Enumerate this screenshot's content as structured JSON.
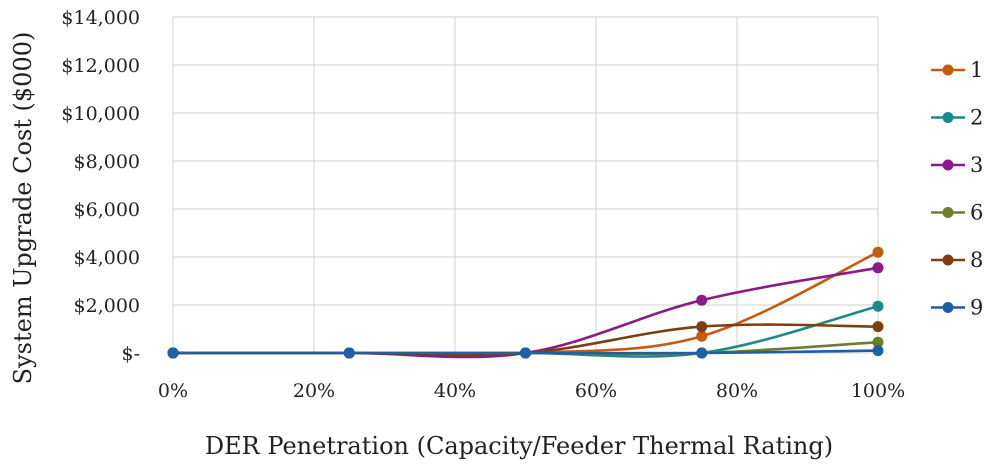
{
  "chart_data": {
    "type": "line",
    "xlabel": "DER Penetration (Capacity/Feeder Thermal Rating)",
    "ylabel": "System Upgrade Cost ($000)",
    "x": [
      0,
      25,
      50,
      75,
      100
    ],
    "xlim": [
      0,
      100
    ],
    "ylim": [
      0,
      14000
    ],
    "x_ticks": [
      {
        "value": 0,
        "label": "0%"
      },
      {
        "value": 20,
        "label": "20%"
      },
      {
        "value": 40,
        "label": "40%"
      },
      {
        "value": 60,
        "label": "60%"
      },
      {
        "value": 80,
        "label": "80%"
      },
      {
        "value": 100,
        "label": "100%"
      }
    ],
    "y_ticks": [
      {
        "value": 0,
        "label": "$-"
      },
      {
        "value": 2000,
        "label": "$2,000"
      },
      {
        "value": 4000,
        "label": "$4,000"
      },
      {
        "value": 6000,
        "label": "$6,000"
      },
      {
        "value": 8000,
        "label": "$8,000"
      },
      {
        "value": 10000,
        "label": "$10,000"
      },
      {
        "value": 12000,
        "label": "$12,000"
      },
      {
        "value": 14000,
        "label": "$14,000"
      }
    ],
    "grid": true,
    "legend_position": "right",
    "series": [
      {
        "name": "1",
        "color": "#C55A11",
        "values": [
          0,
          0,
          0,
          700,
          4200
        ]
      },
      {
        "name": "2",
        "color": "#1B8A8A",
        "values": [
          0,
          0,
          0,
          0,
          1950
        ]
      },
      {
        "name": "3",
        "color": "#8B1A8B",
        "values": [
          0,
          0,
          0,
          2200,
          3550
        ]
      },
      {
        "name": "6",
        "color": "#6B7F2A",
        "values": [
          0,
          0,
          0,
          0,
          450
        ]
      },
      {
        "name": "8",
        "color": "#7B3F10",
        "values": [
          0,
          0,
          0,
          1100,
          1100
        ]
      },
      {
        "name": "9",
        "color": "#1F5FA8",
        "values": [
          0,
          0,
          0,
          0,
          100
        ]
      }
    ]
  }
}
